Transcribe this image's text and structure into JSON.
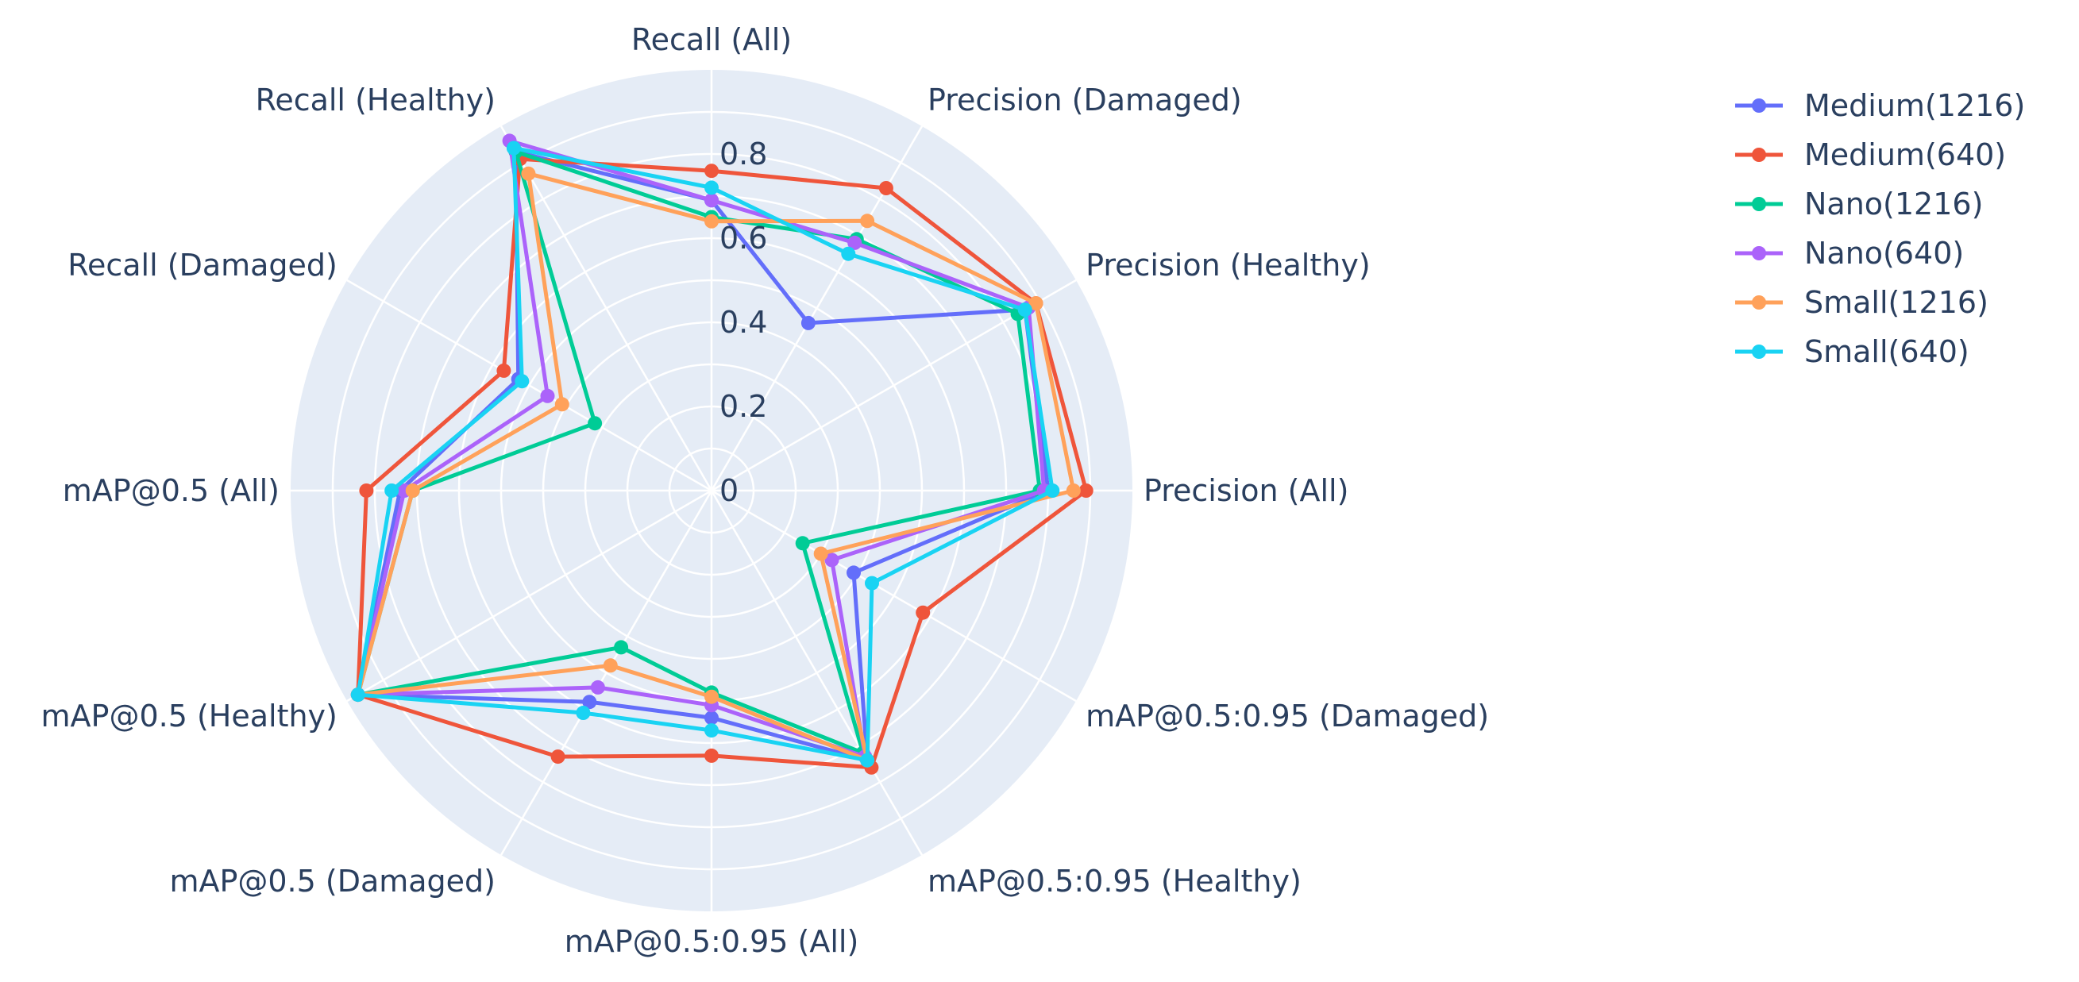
{
  "chart_data": {
    "type": "radar",
    "theta": [
      "Recall (All)",
      "Precision (Damaged)",
      "Precision (Healthy)",
      "Precision (All)",
      "mAP@0.5:0.95 (Damaged)",
      "mAP@0.5:0.95 (Healthy)",
      "mAP@0.5:0.95 (All)",
      "mAP@0.5 (Damaged)",
      "mAP@0.5 (Healthy)",
      "mAP@0.5 (All)",
      "Recall (Damaged)",
      "Recall (Healthy)"
    ],
    "radial_range": [
      0,
      1
    ],
    "radial_ticks": [
      0,
      0.2,
      0.4,
      0.6,
      0.8
    ],
    "radial_tick_labels": [
      "0",
      "0.2",
      "0.4",
      "0.6",
      "0.8"
    ],
    "grid": true,
    "legend_position": "top-right",
    "series": [
      {
        "name": "Medium(1216)",
        "color": "#636efa",
        "values": [
          0.69,
          0.46,
          0.86,
          0.8,
          0.39,
          0.74,
          0.54,
          0.58,
          0.97,
          0.74,
          0.53,
          0.93
        ]
      },
      {
        "name": "Medium(640)",
        "color": "#ef553b",
        "values": [
          0.76,
          0.83,
          0.89,
          0.89,
          0.58,
          0.76,
          0.63,
          0.73,
          0.97,
          0.82,
          0.57,
          0.91
        ]
      },
      {
        "name": "Nano(1216)",
        "color": "#00cc96",
        "values": [
          0.65,
          0.69,
          0.84,
          0.78,
          0.25,
          0.72,
          0.48,
          0.43,
          0.97,
          0.71,
          0.32,
          0.93
        ]
      },
      {
        "name": "Nano(640)",
        "color": "#ab63fa",
        "values": [
          0.69,
          0.68,
          0.87,
          0.79,
          0.33,
          0.73,
          0.51,
          0.54,
          0.97,
          0.73,
          0.45,
          0.96
        ]
      },
      {
        "name": "Small(1216)",
        "color": "#ffa15a",
        "values": [
          0.64,
          0.74,
          0.89,
          0.86,
          0.3,
          0.74,
          0.49,
          0.48,
          0.97,
          0.71,
          0.41,
          0.87
        ]
      },
      {
        "name": "Small(640)",
        "color": "#19d3f3",
        "values": [
          0.72,
          0.65,
          0.86,
          0.81,
          0.44,
          0.74,
          0.57,
          0.61,
          0.97,
          0.76,
          0.52,
          0.94
        ]
      }
    ]
  }
}
